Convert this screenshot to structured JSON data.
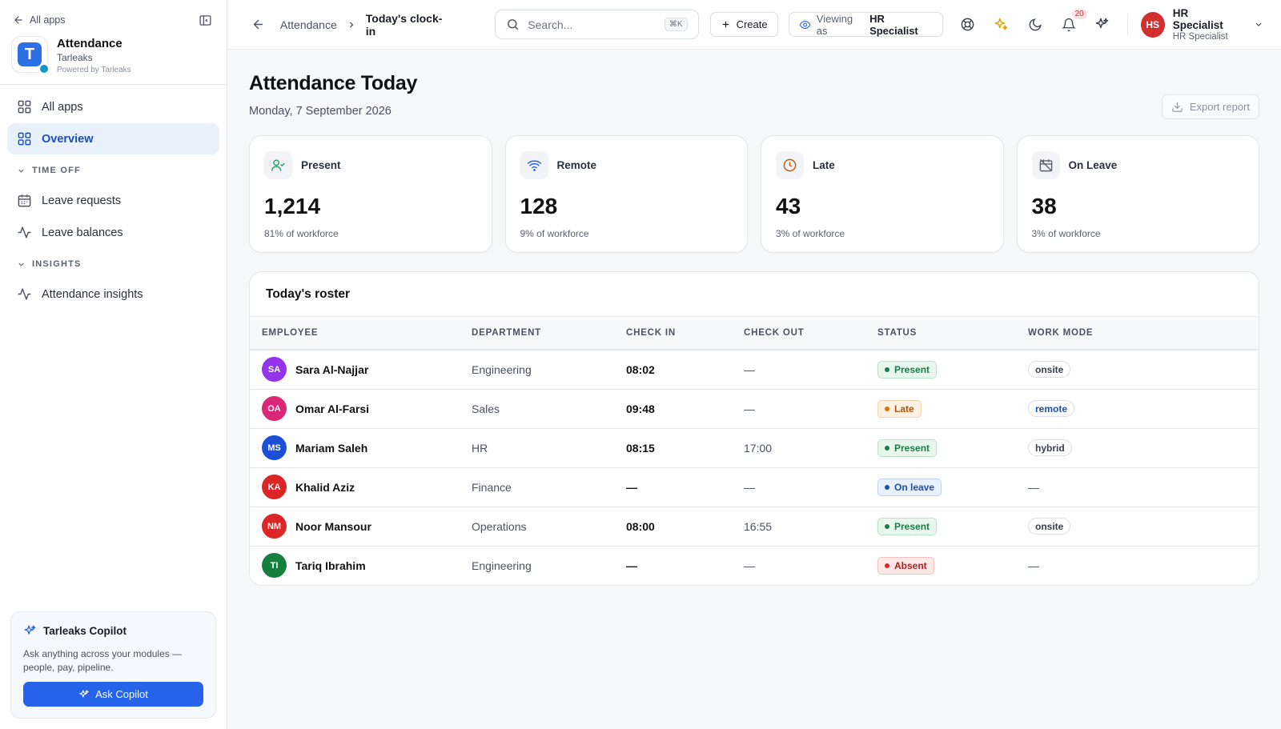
{
  "sidebar": {
    "back_label": "All apps",
    "app": {
      "name": "Attendance",
      "org": "Tarleaks",
      "powered": "Powered by Tarleaks",
      "logo_letter": "T"
    },
    "nav": [
      {
        "label": "All apps",
        "icon": "grid-icon"
      },
      {
        "label": "Overview",
        "icon": "grid-icon",
        "active": true
      }
    ],
    "sections": [
      {
        "title": "TIME OFF",
        "items": [
          {
            "label": "Leave requests",
            "icon": "calendar-icon"
          },
          {
            "label": "Leave balances",
            "icon": "activity-icon"
          }
        ]
      },
      {
        "title": "INSIGHTS",
        "items": [
          {
            "label": "Attendance insights",
            "icon": "activity-icon"
          }
        ]
      }
    ],
    "copilot": {
      "title": "Tarleaks Copilot",
      "description": "Ask anything across your modules — people, pay, pipeline.",
      "button": "Ask Copilot"
    }
  },
  "topbar": {
    "breadcrumb": {
      "parent": "Attendance",
      "current": "Today's clock-in"
    },
    "search": {
      "placeholder": "Search...",
      "shortcut": "⌘K"
    },
    "create_label": "Create",
    "viewing": {
      "prefix": "Viewing as",
      "role": "HR Specialist"
    },
    "notifications_count": "20",
    "user": {
      "initials": "HS",
      "name": "HR Specialist",
      "role": "HR Specialist"
    }
  },
  "page": {
    "title": "Attendance Today",
    "date": "Monday, 7 September 2026",
    "export_label": "Export report"
  },
  "stats": [
    {
      "label": "Present",
      "value": "1,214",
      "sub": "81% of workforce",
      "icon": "user-check-icon",
      "color": "#2e9e6a"
    },
    {
      "label": "Remote",
      "value": "128",
      "sub": "9% of workforce",
      "icon": "wifi-icon",
      "color": "#2563eb"
    },
    {
      "label": "Late",
      "value": "43",
      "sub": "3% of workforce",
      "icon": "clock-icon",
      "color": "#c2570c"
    },
    {
      "label": "On Leave",
      "value": "38",
      "sub": "3% of workforce",
      "icon": "calendar-off-icon",
      "color": "#5b6270"
    }
  ],
  "roster": {
    "title": "Today's roster",
    "columns": [
      "EMPLOYEE",
      "DEPARTMENT",
      "CHECK IN",
      "CHECK OUT",
      "STATUS",
      "WORK MODE"
    ],
    "rows": [
      {
        "initials": "SA",
        "avatar_color": "#9333ea",
        "name": "Sara Al-Najjar",
        "department": "Engineering",
        "check_in": "08:02",
        "check_out": "—",
        "status": "Present",
        "mode": "onsite"
      },
      {
        "initials": "OA",
        "avatar_color": "#db2777",
        "name": "Omar Al-Farsi",
        "department": "Sales",
        "check_in": "09:48",
        "check_out": "—",
        "status": "Late",
        "mode": "remote"
      },
      {
        "initials": "MS",
        "avatar_color": "#1d4ed8",
        "name": "Mariam Saleh",
        "department": "HR",
        "check_in": "08:15",
        "check_out": "17:00",
        "status": "Present",
        "mode": "hybrid"
      },
      {
        "initials": "KA",
        "avatar_color": "#dc2626",
        "name": "Khalid Aziz",
        "department": "Finance",
        "check_in": "—",
        "check_out": "—",
        "status": "On leave",
        "mode": "—"
      },
      {
        "initials": "NM",
        "avatar_color": "#dc2626",
        "name": "Noor Mansour",
        "department": "Operations",
        "check_in": "08:00",
        "check_out": "16:55",
        "status": "Present",
        "mode": "onsite"
      },
      {
        "initials": "TI",
        "avatar_color": "#15803d",
        "name": "Tariq Ibrahim",
        "department": "Engineering",
        "check_in": "—",
        "check_out": "—",
        "status": "Absent",
        "mode": "—"
      }
    ]
  },
  "status_styles": {
    "Present": {
      "bg": "#e8f7ee",
      "border": "#b7e4c7",
      "text": "#1f7a45",
      "dot": "#1f7a45"
    },
    "Late": {
      "bg": "#fdf1e3",
      "border": "#f7d3a8",
      "text": "#b45309",
      "dot": "#d97706"
    },
    "On leave": {
      "bg": "#e8f0fc",
      "border": "#bcd0f5",
      "text": "#1a4fb5",
      "dot": "#1a4fb5"
    },
    "Absent": {
      "bg": "#fde8e8",
      "border": "#f5c0c0",
      "text": "#b91c1c",
      "dot": "#dc2626"
    }
  }
}
